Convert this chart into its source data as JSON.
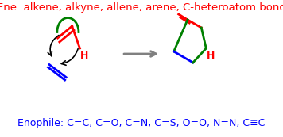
{
  "title_text": "Ene: alkene, alkyne, allene, arene, C-heteroatom bond",
  "title_color": "#FF0000",
  "title_fontsize": 9.5,
  "enophile_text": "Enophile: C=C, C=O, C=N, C=S, O=O, N=N, C≡C",
  "enophile_color": "#0000FF",
  "enophile_fontsize": 9.0,
  "background_color": "white",
  "red": "#FF0000",
  "green": "#008000",
  "blue": "#0000FF",
  "black": "#000000",
  "gray": "#808080"
}
